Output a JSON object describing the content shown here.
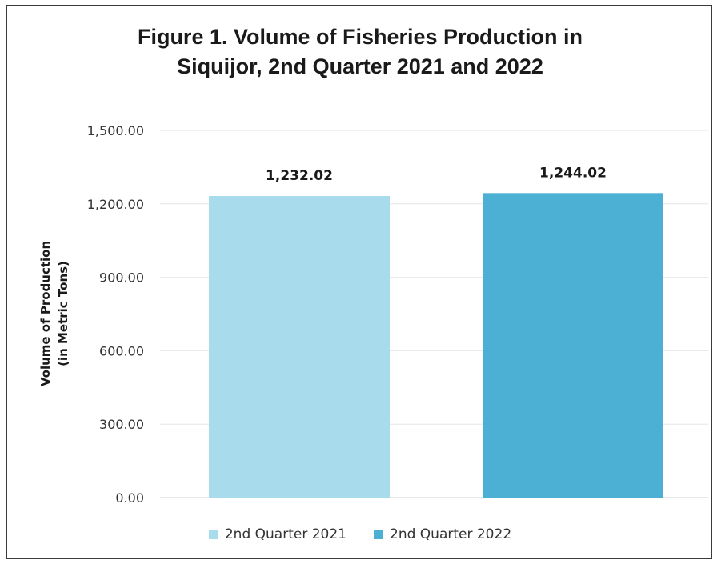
{
  "chart_data": {
    "type": "bar",
    "title_lines": [
      "Figure 1. Volume of Fisheries Production in",
      "Siquijor, 2nd Quarter 2021 and 2022"
    ],
    "categories": [
      "2nd Quarter 2021",
      "2nd Quarter 2022"
    ],
    "values": [
      1232.02,
      1244.02
    ],
    "data_labels": [
      "1,232.02",
      "1,244.02"
    ],
    "colors": [
      "#a8dced",
      "#4bb0d4"
    ],
    "ylabel_lines": [
      "Volume of Production",
      "(in Metric Tons)"
    ],
    "xlabel": "",
    "ylim": [
      0,
      1500
    ],
    "yticks": [
      0,
      300,
      600,
      900,
      1200,
      1500
    ],
    "ytick_labels": [
      "0.00",
      "300.00",
      "600.00",
      "900.00",
      "1,200.00",
      "1,500.00"
    ],
    "grid": true,
    "legend_position": "bottom"
  }
}
